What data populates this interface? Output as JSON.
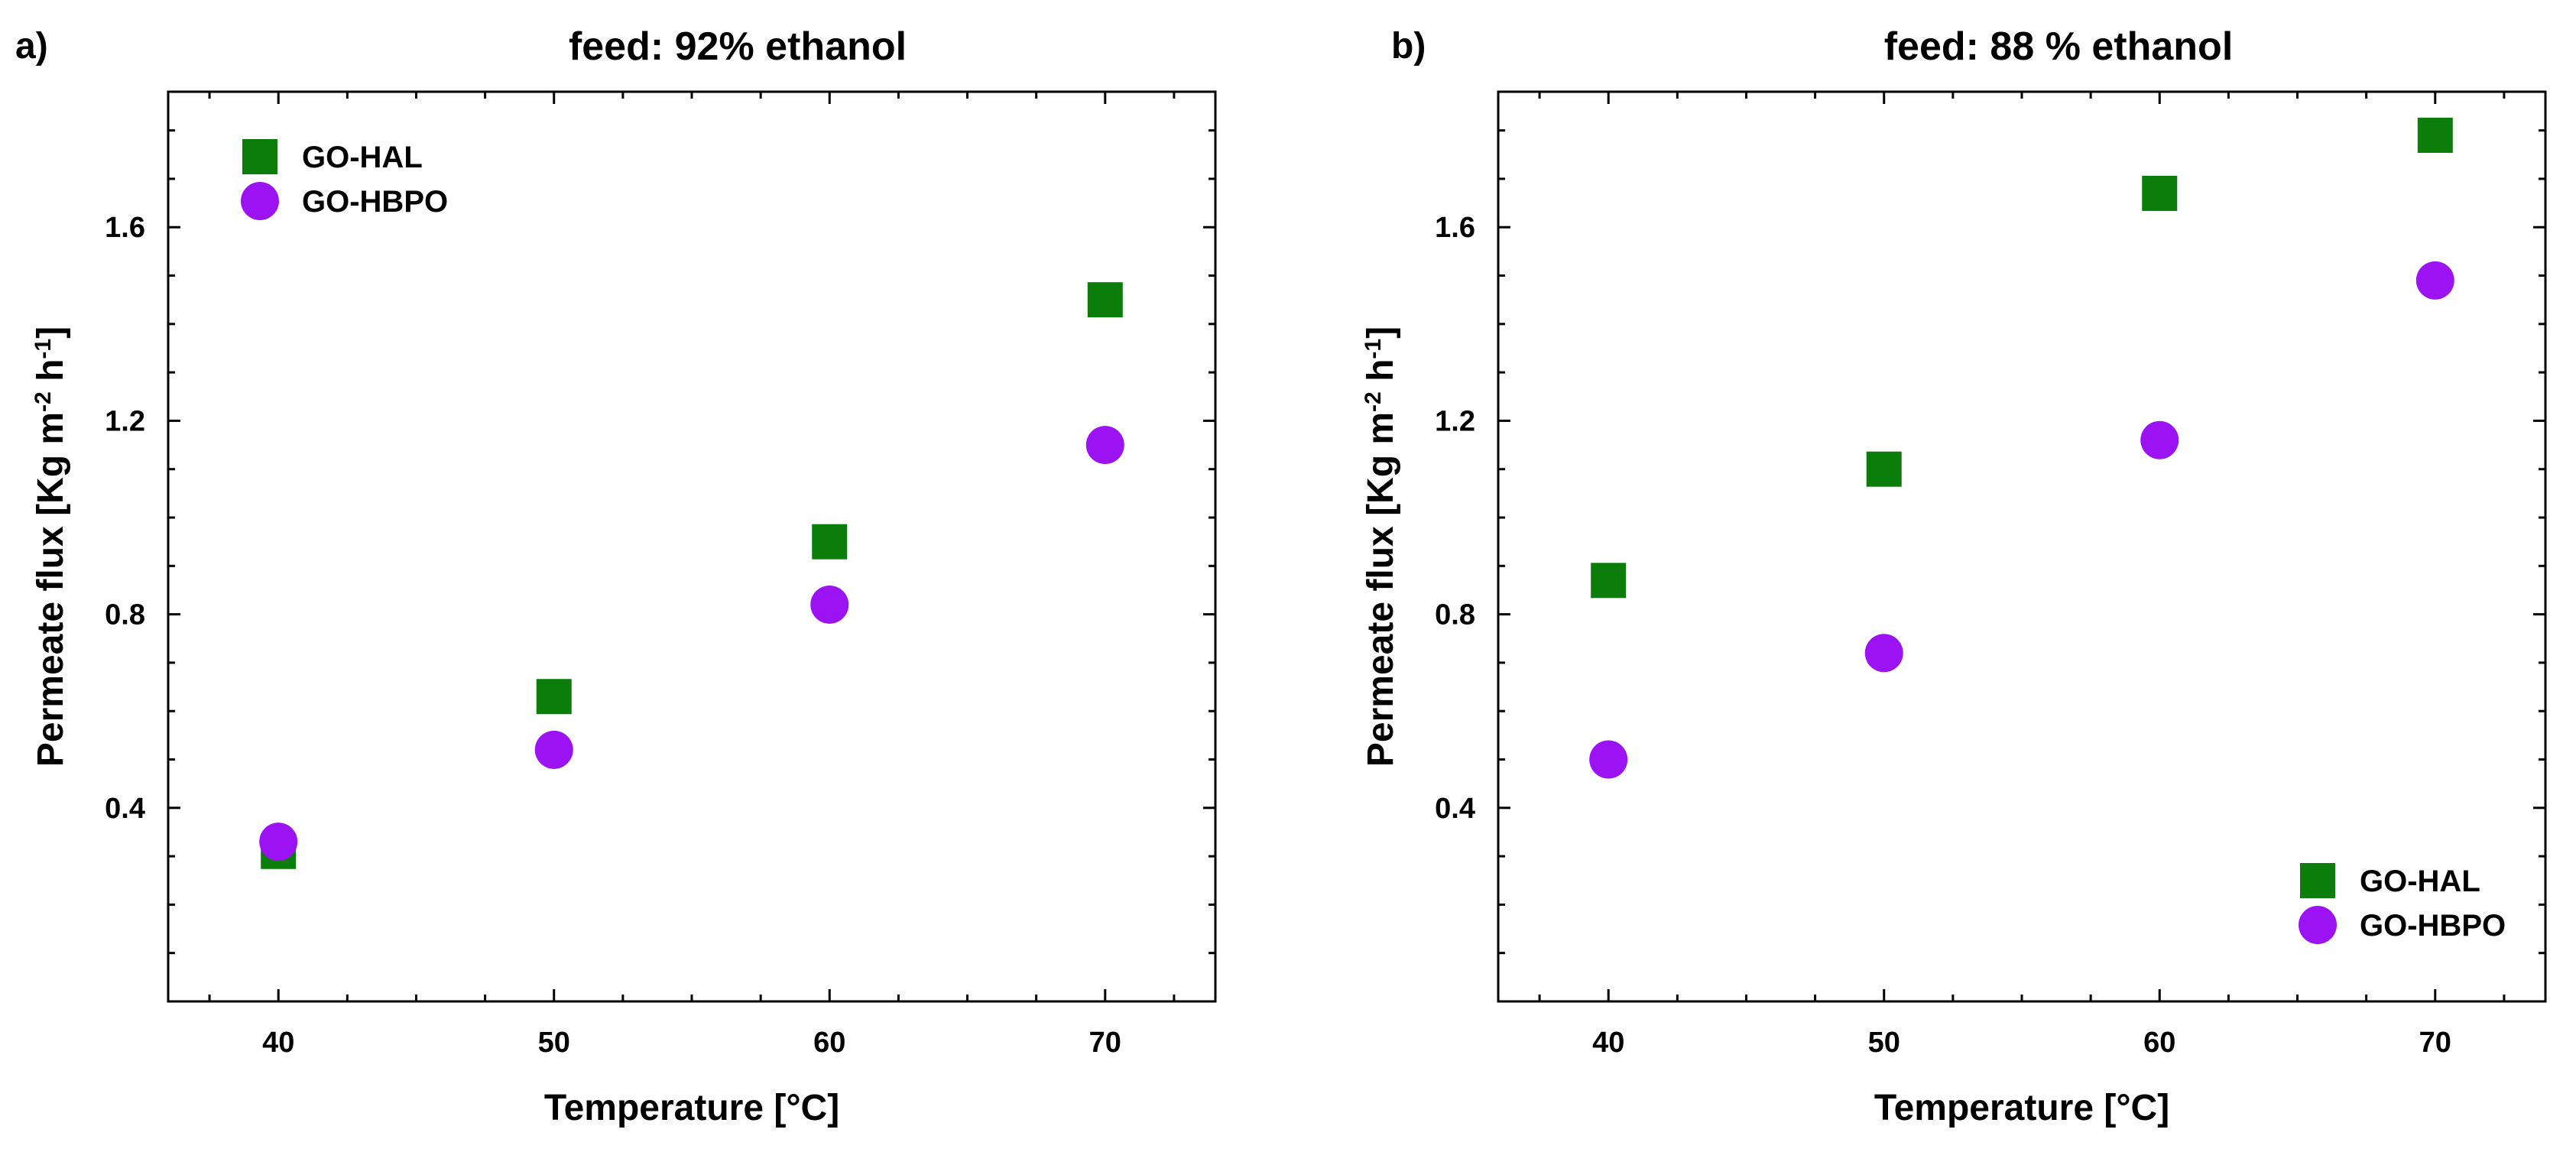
{
  "chart_data": [
    {
      "type": "scatter",
      "panel_label": "a)",
      "title": "feed: 92% ethanol",
      "xlabel": "Temperature [°C]",
      "ylabel_main": "Permeate flux [Kg m",
      "ylabel_sup1": "-2",
      "ylabel_mid": " h",
      "ylabel_sup2": "-1",
      "ylabel_end": "]",
      "xlim": [
        36,
        74
      ],
      "ylim": [
        0.0,
        1.88
      ],
      "xticks": [
        40,
        50,
        60,
        70
      ],
      "xtick_labels": [
        "40",
        "50",
        "60",
        "70"
      ],
      "yticks": [
        0.4,
        0.8,
        1.2,
        1.6
      ],
      "ytick_labels": [
        "0.4",
        "0.8",
        "1.2",
        "1.6"
      ],
      "legend_position": "top-left",
      "series": [
        {
          "name": "GO-HAL",
          "marker": "square",
          "color": "#0a7d0a",
          "x": [
            40,
            50,
            60,
            70
          ],
          "y": [
            0.31,
            0.63,
            0.95,
            1.45
          ]
        },
        {
          "name": "GO-HBPO",
          "marker": "circle",
          "color": "#9b13f2",
          "x": [
            40,
            50,
            60,
            70
          ],
          "y": [
            0.33,
            0.52,
            0.82,
            1.15
          ]
        }
      ]
    },
    {
      "type": "scatter",
      "panel_label": "b)",
      "title": "feed: 88 % ethanol",
      "xlabel": "Temperature [°C]",
      "ylabel_main": "Permeate flux [Kg m",
      "ylabel_sup1": "-2",
      "ylabel_mid": " h",
      "ylabel_sup2": "-1",
      "ylabel_end": "]",
      "xlim": [
        36,
        74
      ],
      "ylim": [
        0.0,
        1.88
      ],
      "xticks": [
        40,
        50,
        60,
        70
      ],
      "xtick_labels": [
        "40",
        "50",
        "60",
        "70"
      ],
      "yticks": [
        0.4,
        0.8,
        1.2,
        1.6
      ],
      "ytick_labels": [
        "0.4",
        "0.8",
        "1.2",
        "1.6"
      ],
      "legend_position": "bottom-right",
      "series": [
        {
          "name": "GO-HAL",
          "marker": "square",
          "color": "#0a7d0a",
          "x": [
            40,
            50,
            60,
            70
          ],
          "y": [
            0.87,
            1.1,
            1.67,
            1.79
          ]
        },
        {
          "name": "GO-HBPO",
          "marker": "circle",
          "color": "#9b13f2",
          "x": [
            40,
            50,
            60,
            70
          ],
          "y": [
            0.5,
            0.72,
            1.16,
            1.49
          ]
        }
      ]
    }
  ]
}
